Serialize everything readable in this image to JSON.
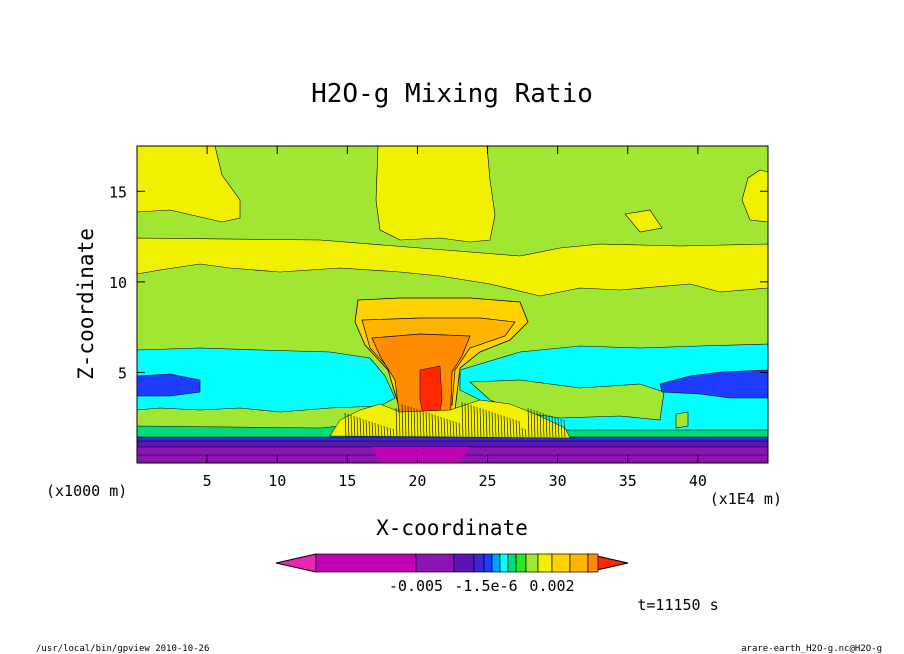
{
  "chart_data": {
    "type": "contour",
    "title": "H2O-g Mixing Ratio",
    "xlabel": "X-coordinate",
    "ylabel": "Z-coordinate",
    "x_unit": "(x1E4 m)",
    "y_unit": "(x1000 m)",
    "xlim": [
      0,
      45
    ],
    "ylim": [
      0,
      17.5
    ],
    "x_ticks": [
      5,
      10,
      15,
      20,
      25,
      30,
      35,
      40
    ],
    "y_ticks": [
      5,
      10,
      15
    ],
    "colorbar": {
      "colors": [
        "#e628b4",
        "#c000b4",
        "#8c14b4",
        "#5a14b4",
        "#3c28d2",
        "#1e3cff",
        "#00a0ff",
        "#00ffff",
        "#00dc78",
        "#28e628",
        "#a0e632",
        "#f0f000",
        "#ffd200",
        "#ffb400",
        "#ff8c00",
        "#ff2800"
      ],
      "labels": [
        "-0.005",
        "-1.5e-6",
        "0.002"
      ]
    },
    "time_label": "t=11150 s"
  },
  "footer": {
    "left": "/usr/local/bin/gpview  2010-10-26",
    "right": "arare-earth_H2O-g.nc@H2O-g"
  }
}
